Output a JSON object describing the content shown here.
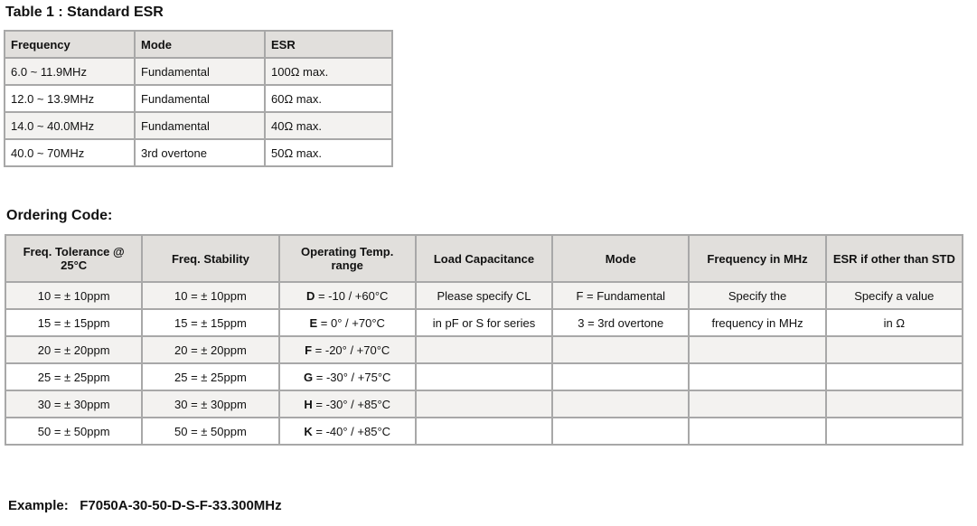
{
  "table1": {
    "title": "Table 1 : Standard ESR",
    "headers": [
      "Frequency",
      "Mode",
      "ESR"
    ],
    "rows": [
      [
        "6.0 ~ 11.9MHz",
        "Fundamental",
        "100Ω max."
      ],
      [
        "12.0 ~ 13.9MHz",
        "Fundamental",
        "60Ω max."
      ],
      [
        "14.0 ~ 40.0MHz",
        "Fundamental",
        "40Ω max."
      ],
      [
        "40.0 ~ 70MHz",
        "3rd overtone",
        "50Ω max."
      ]
    ]
  },
  "ordering": {
    "title": "Ordering Code:",
    "headers": [
      "Freq. Tolerance @ 25°C",
      "Freq. Stability",
      "Operating Temp. range",
      "Load Capacitance",
      "Mode",
      "Frequency in MHz",
      "ESR if other than STD"
    ],
    "rows": [
      [
        "10 = ± 10ppm",
        "10 = ± 10ppm",
        [
          "D",
          "= -10 / +60°C"
        ],
        "Please specify CL",
        "F = Fundamental",
        "Specify the",
        "Specify a value"
      ],
      [
        "15 = ± 15ppm",
        "15 = ± 15ppm",
        [
          "E",
          "= 0° / +70°C"
        ],
        "in pF or S for series",
        "3 = 3rd overtone",
        "frequency in MHz",
        "in Ω"
      ],
      [
        "20 = ± 20ppm",
        "20 = ± 20ppm",
        [
          "F",
          "= -20° / +70°C"
        ],
        "",
        "",
        "",
        ""
      ],
      [
        "25 = ± 25ppm",
        "25 = ± 25ppm",
        [
          "G",
          "= -30° / +75°C"
        ],
        "",
        "",
        "",
        ""
      ],
      [
        "30 = ± 30ppm",
        "30 = ± 30ppm",
        [
          "H",
          "= -30° / +85°C"
        ],
        "",
        "",
        "",
        ""
      ],
      [
        "50 = ± 50ppm",
        "50 = ± 50ppm",
        [
          "K",
          "= -40° / +85°C"
        ],
        "",
        "",
        "",
        ""
      ]
    ]
  },
  "example": {
    "label": "Example:",
    "code": "F7050A-30-50-D-S-F-33.300MHz"
  }
}
